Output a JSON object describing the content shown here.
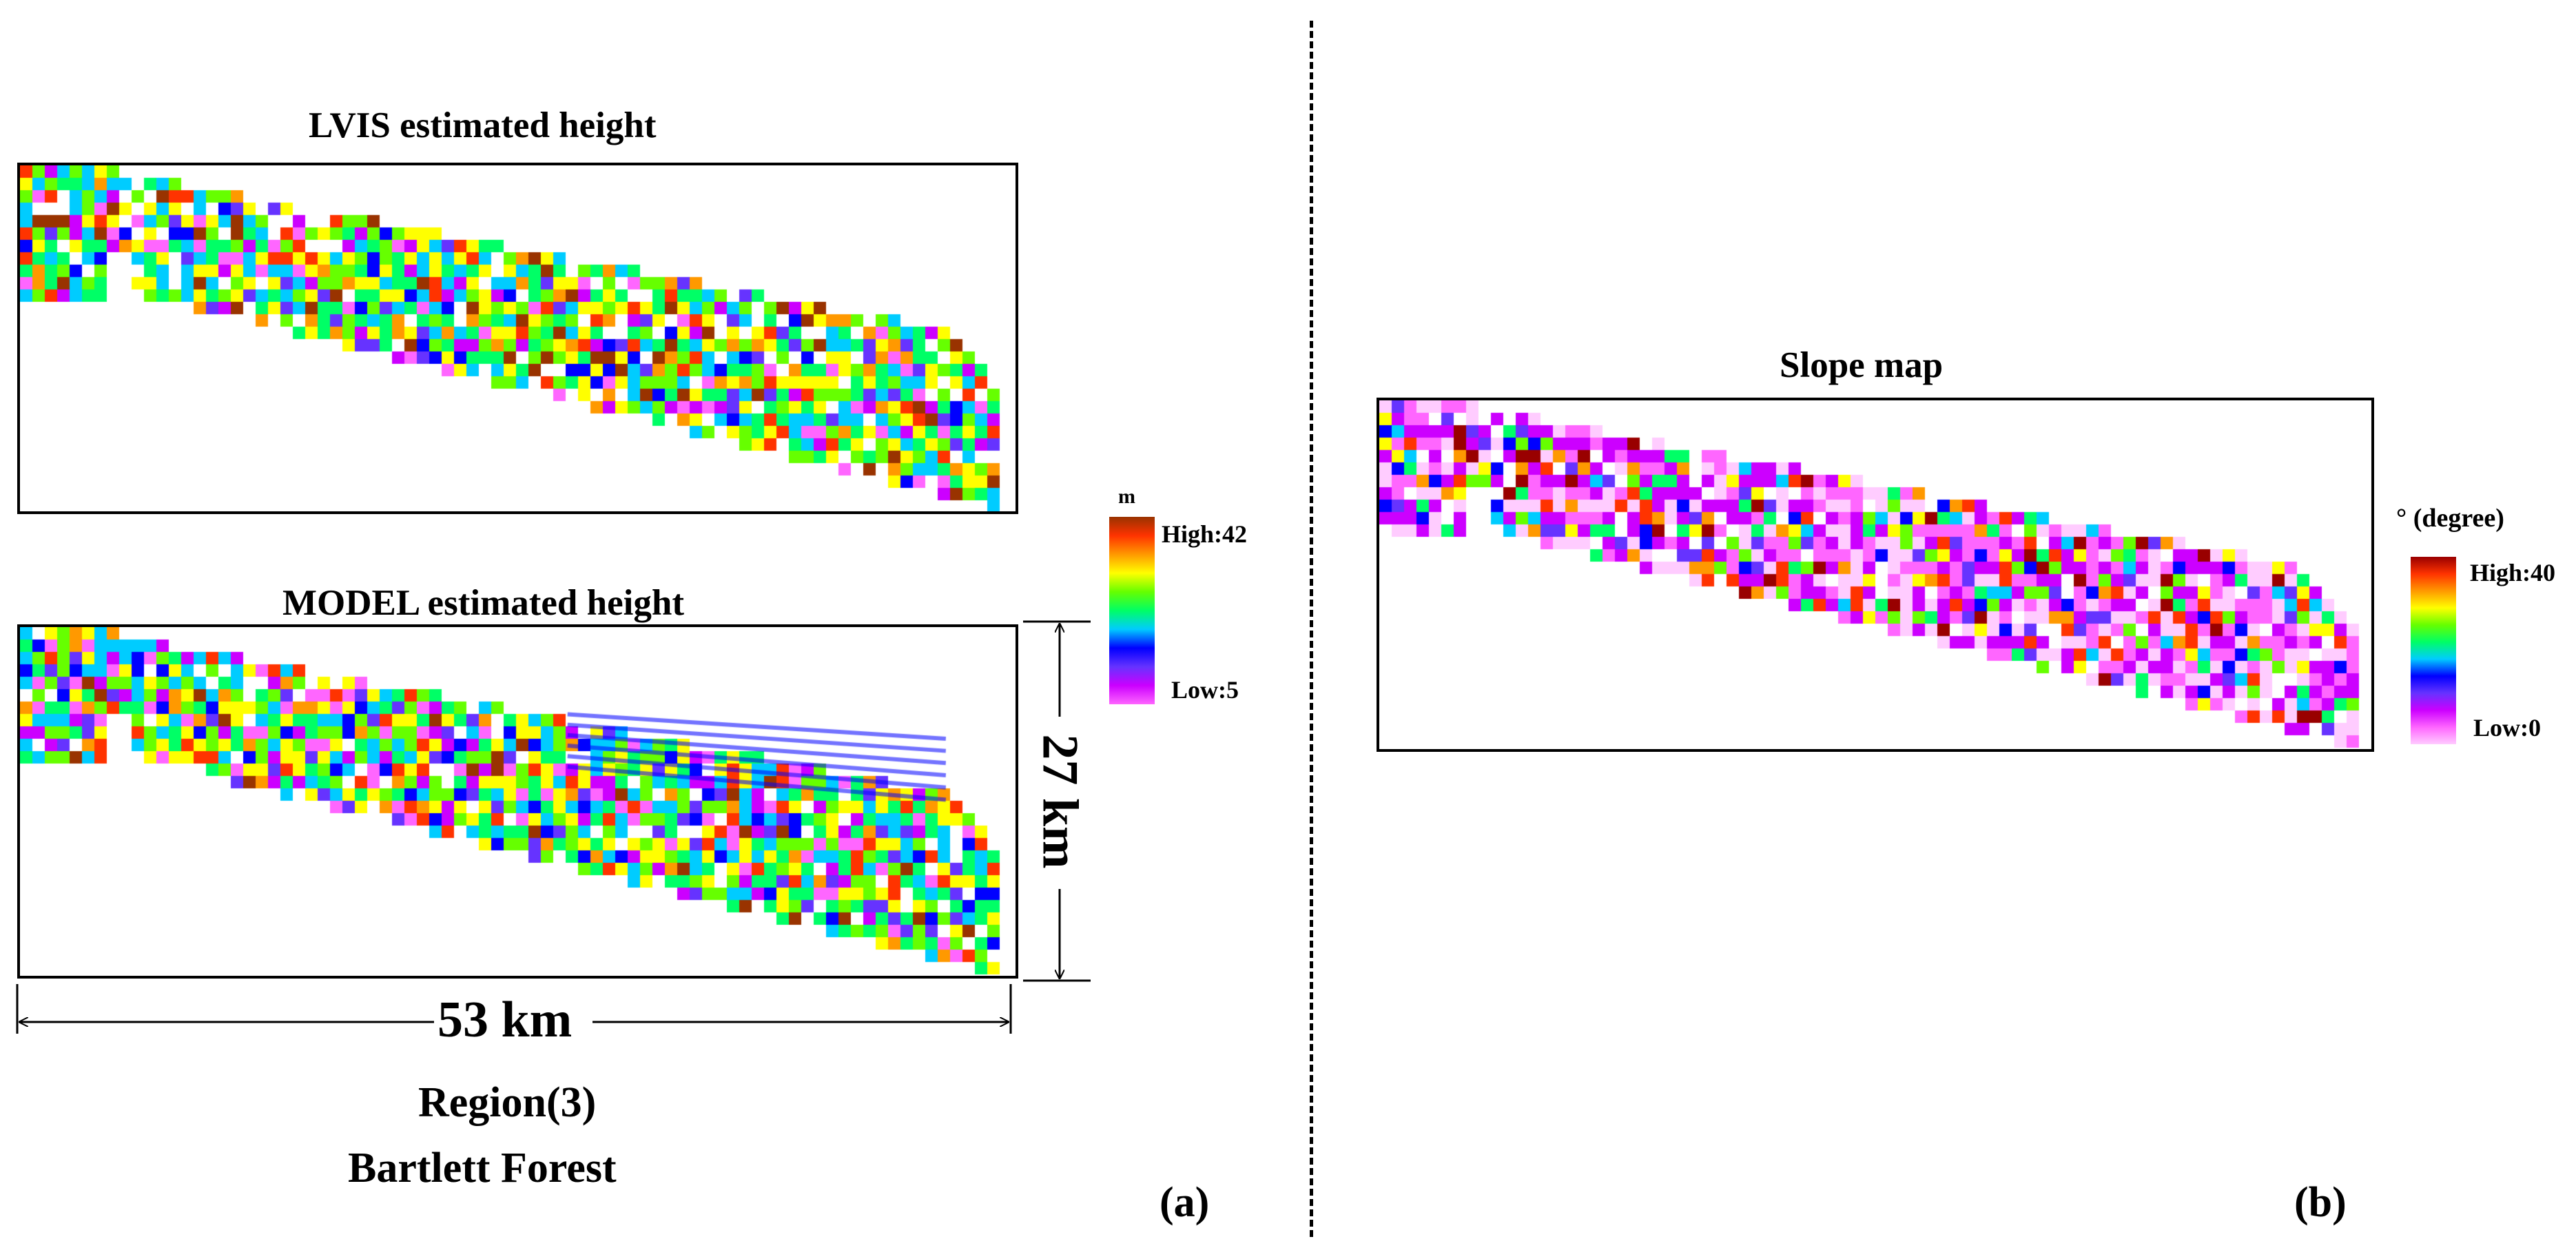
{
  "panel_a": {
    "map_top_title": "LVIS estimated height",
    "map_bottom_title": "MODEL estimated height",
    "legend_unit": "m",
    "legend_high": "High:42",
    "legend_low": "Low:5",
    "dim_height": "27 km",
    "dim_width": "53 km",
    "region_line1": "Region(3)",
    "region_line2": "Bartlett Forest",
    "label": "(a)"
  },
  "panel_b": {
    "map_title": "Slope map",
    "legend_unit": "° (degree)",
    "legend_high": "High:40",
    "legend_low": "Low:0",
    "label": "(b)"
  },
  "colors": {
    "height_ramp": [
      "#ff66ff",
      "#cc00ff",
      "#6633ff",
      "#0000ff",
      "#00ccff",
      "#00ff66",
      "#66ff00",
      "#ffff00",
      "#ff9900",
      "#ff3300",
      "#993300"
    ],
    "slope_ramp": [
      "#ffccff",
      "#ff66ff",
      "#cc00ff",
      "#6633ff",
      "#0000ff",
      "#00ccff",
      "#00ff66",
      "#66ff00",
      "#ffff00",
      "#ff9900",
      "#ff3300",
      "#990000"
    ]
  }
}
